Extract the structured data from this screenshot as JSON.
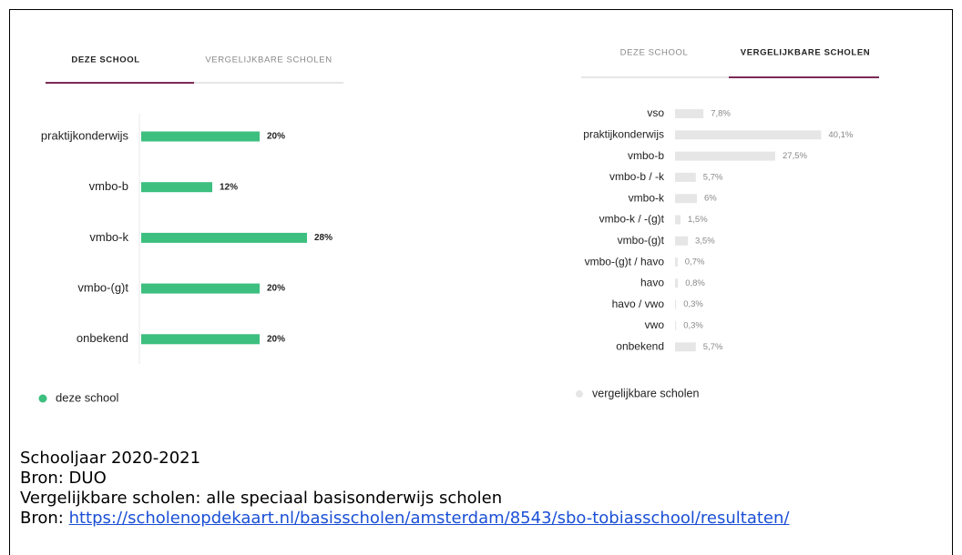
{
  "chart_data": [
    {
      "type": "bar",
      "orientation": "horizontal",
      "tabs": [
        "DEZE SCHOOL",
        "VERGELIJKBARE SCHOLEN"
      ],
      "active_tab": 0,
      "categories": [
        "praktijkonderwijs",
        "vmbo-b",
        "vmbo-k",
        "vmbo-(g)t",
        "onbekend"
      ],
      "series": [
        {
          "name": "deze school",
          "color": "#3dbf7f",
          "values": [
            20,
            12,
            28,
            20,
            20
          ],
          "value_labels": [
            "20%",
            "12%",
            "28%",
            "20%",
            "20%"
          ]
        }
      ]
    },
    {
      "type": "bar",
      "orientation": "horizontal",
      "tabs": [
        "DEZE SCHOOL",
        "VERGELIJKBARE SCHOLEN"
      ],
      "active_tab": 1,
      "categories": [
        "vso",
        "praktijkonderwijs",
        "vmbo-b",
        "vmbo-b / -k",
        "vmbo-k",
        "vmbo-k / -(g)t",
        "vmbo-(g)t",
        "vmbo-(g)t / havo",
        "havo",
        "havo / vwo",
        "vwo",
        "onbekend"
      ],
      "series": [
        {
          "name": "vergelijkbare scholen",
          "color": "#e6e6e6",
          "values": [
            7.8,
            40.1,
            27.5,
            5.7,
            6,
            1.5,
            3.5,
            0.7,
            0.8,
            0.3,
            0.3,
            5.7
          ],
          "value_labels": [
            "7,8%",
            "40,1%",
            "27,5%",
            "5,7%",
            "6%",
            "1,5%",
            "3,5%",
            "0,7%",
            "0,8%",
            "0,3%",
            "0,3%",
            "5,7%"
          ]
        }
      ]
    }
  ],
  "footer": {
    "lines": [
      "Schooljaar 2020-2021",
      "Bron: DUO",
      "Vergelijkbare scholen: alle speciaal basisonderwijs scholen"
    ],
    "source_label": "Bron:",
    "source_url": "https://scholenopdekaart.nl/basisscholen/amsterdam/8543/sbo-tobiasschool/resultaten/"
  }
}
